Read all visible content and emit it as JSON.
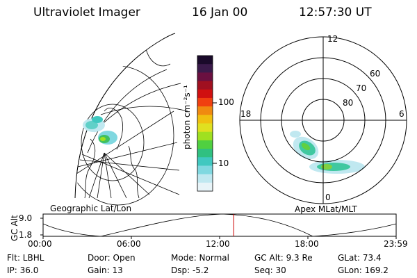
{
  "header": {
    "instrument": "Ultraviolet Imager",
    "date": "16 Jan 00",
    "time": "12:57:30 UT"
  },
  "colorbar": {
    "unit_label": "photon cm⁻²s⁻¹",
    "ticks": [
      "100",
      "10"
    ],
    "colors": [
      "#1a0a2a",
      "#3a1a4a",
      "#6a1040",
      "#a01020",
      "#d01010",
      "#f04010",
      "#f08a10",
      "#f0c010",
      "#e0e020",
      "#a0e020",
      "#50d040",
      "#30c080",
      "#40c8c0",
      "#80d8e0",
      "#c0e8f0",
      "#e8f4f8"
    ]
  },
  "geo_panel": {
    "label": "Geographic Lat/Lon"
  },
  "polar_panel": {
    "label": "Apex MLat/MLT",
    "mlt_labels": {
      "top": "12",
      "right": "6",
      "bottom": "0",
      "left": "18"
    },
    "lat_labels": [
      "60",
      "70",
      "80"
    ]
  },
  "timeline": {
    "axis_title": "GC Alt",
    "y_ticks": [
      "9.0",
      "1.8"
    ],
    "x_ticks": [
      "00:00",
      "06:00",
      "12:00",
      "18:00",
      "23:59"
    ],
    "marker_time": "12:57:30",
    "marker_color": "#cc0000"
  },
  "info": {
    "filter": "Flt: LBHL",
    "ip": "IP: 36.0",
    "door": "Door: Open",
    "gain": "Gain: 13",
    "mode": "Mode: Normal",
    "dsp": "Dsp:    -5.2",
    "gc_alt": "GC Alt: 9.3 Re",
    "seq": "Seq: 30",
    "glat": "GLat:  73.4",
    "glon": "GLon: 169.2"
  }
}
